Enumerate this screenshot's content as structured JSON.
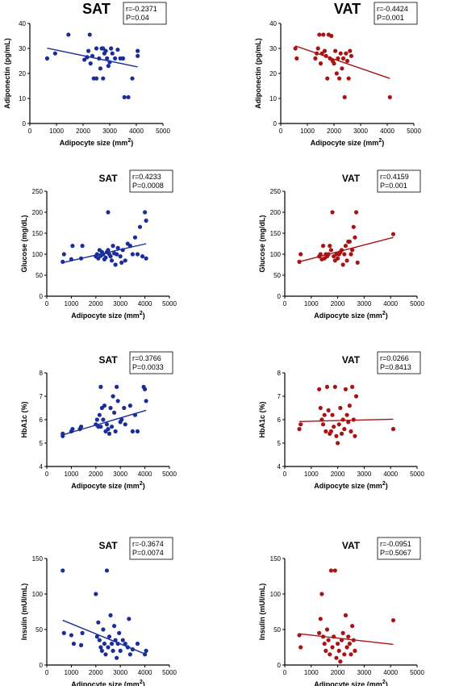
{
  "figure": {
    "colors": {
      "SAT": "#1a2e9a",
      "VAT": "#a81414",
      "axis": "#000000",
      "box_border": "#000000"
    },
    "marker": "filled-circle",
    "regression_line": "solid"
  },
  "chart_data": [
    {
      "type": "scatter",
      "title": "SAT",
      "group": "SAT",
      "xlabel": "Adipocyte size (mm",
      "xlabel_sup": "2",
      "xlabel_close": ")",
      "ylabel": "Adiponectin (pg/mL)",
      "xlim": [
        0,
        5000
      ],
      "ylim": [
        0,
        40
      ],
      "xticks": [
        0,
        1000,
        2000,
        3000,
        4000,
        5000
      ],
      "yticks": [
        0,
        10,
        20,
        30,
        40
      ],
      "stat_r": "r=-0.2371",
      "stat_p": "P=0.04",
      "fit": {
        "x": [
          650,
          4050
        ],
        "y": [
          30.1,
          22.6
        ]
      },
      "points": [
        [
          650,
          26
        ],
        [
          950,
          28
        ],
        [
          1450,
          35.5
        ],
        [
          2050,
          25.5
        ],
        [
          2150,
          26.5
        ],
        [
          2200,
          29
        ],
        [
          2250,
          35.5
        ],
        [
          2280,
          24
        ],
        [
          2350,
          27
        ],
        [
          2400,
          18
        ],
        [
          2500,
          30
        ],
        [
          2500,
          18
        ],
        [
          2600,
          26
        ],
        [
          2650,
          22
        ],
        [
          2700,
          30
        ],
        [
          2750,
          30
        ],
        [
          2750,
          18
        ],
        [
          2800,
          28
        ],
        [
          2850,
          29
        ],
        [
          2900,
          26
        ],
        [
          2950,
          23
        ],
        [
          3000,
          24.5
        ],
        [
          3050,
          30
        ],
        [
          3100,
          28
        ],
        [
          3200,
          26
        ],
        [
          3300,
          29.5
        ],
        [
          3400,
          26
        ],
        [
          3500,
          26
        ],
        [
          3550,
          10.5
        ],
        [
          3700,
          10.5
        ],
        [
          3850,
          18
        ],
        [
          4050,
          27
        ],
        [
          4050,
          29
        ]
      ]
    },
    {
      "type": "scatter",
      "title": "VAT",
      "group": "VAT",
      "xlabel": "Adipocyte size (mm",
      "xlabel_sup": "2",
      "xlabel_close": ")",
      "ylabel": "Adiponectin (pg/mL)",
      "xlim": [
        0,
        5000
      ],
      "ylim": [
        0,
        40
      ],
      "xticks": [
        0,
        1000,
        2000,
        3000,
        4000,
        5000
      ],
      "yticks": [
        0,
        10,
        20,
        30,
        40
      ],
      "stat_r": "r=-0.4424",
      "stat_p": "P=0.001",
      "fit": {
        "x": [
          550,
          4100
        ],
        "y": [
          31,
          18
        ]
      },
      "points": [
        [
          550,
          30
        ],
        [
          600,
          26
        ],
        [
          1300,
          26
        ],
        [
          1350,
          28
        ],
        [
          1400,
          30
        ],
        [
          1450,
          35.5
        ],
        [
          1500,
          24
        ],
        [
          1550,
          28
        ],
        [
          1600,
          35.5
        ],
        [
          1650,
          29
        ],
        [
          1700,
          27
        ],
        [
          1750,
          18
        ],
        [
          1800,
          35.5
        ],
        [
          1850,
          26
        ],
        [
          1900,
          35
        ],
        [
          1950,
          25
        ],
        [
          2000,
          24
        ],
        [
          2050,
          29
        ],
        [
          2100,
          20
        ],
        [
          2150,
          26
        ],
        [
          2200,
          18
        ],
        [
          2250,
          28
        ],
        [
          2300,
          22
        ],
        [
          2350,
          26
        ],
        [
          2400,
          10.5
        ],
        [
          2450,
          28
        ],
        [
          2500,
          25
        ],
        [
          2550,
          18
        ],
        [
          2600,
          29
        ],
        [
          2650,
          27
        ],
        [
          4100,
          10.5
        ]
      ]
    },
    {
      "type": "scatter",
      "title": "SAT",
      "group": "SAT",
      "xlabel": "Adipocyte size (mm",
      "xlabel_sup": "2",
      "xlabel_close": ")",
      "ylabel": "Glucose (mg/dL)",
      "xlim": [
        0,
        5000
      ],
      "ylim": [
        0,
        250
      ],
      "xticks": [
        0,
        1000,
        2000,
        3000,
        4000,
        5000
      ],
      "yticks": [
        0,
        50,
        100,
        150,
        200,
        250
      ],
      "stat_r": "r=0.4233",
      "stat_p": "P=0.0008",
      "fit": {
        "x": [
          650,
          4050
        ],
        "y": [
          80,
          125
        ]
      },
      "points": [
        [
          650,
          82
        ],
        [
          700,
          100
        ],
        [
          1000,
          88
        ],
        [
          1050,
          120
        ],
        [
          1400,
          90
        ],
        [
          1450,
          120
        ],
        [
          2000,
          95
        ],
        [
          2050,
          100
        ],
        [
          2100,
          90
        ],
        [
          2150,
          110
        ],
        [
          2200,
          96
        ],
        [
          2250,
          105
        ],
        [
          2300,
          100
        ],
        [
          2350,
          88
        ],
        [
          2400,
          92
        ],
        [
          2450,
          105
        ],
        [
          2500,
          110
        ],
        [
          2500,
          200
        ],
        [
          2550,
          100
        ],
        [
          2600,
          95
        ],
        [
          2650,
          85
        ],
        [
          2700,
          120
        ],
        [
          2750,
          102
        ],
        [
          2800,
          75
        ],
        [
          2850,
          100
        ],
        [
          2900,
          115
        ],
        [
          3000,
          95
        ],
        [
          3050,
          80
        ],
        [
          3100,
          110
        ],
        [
          3200,
          85
        ],
        [
          3300,
          125
        ],
        [
          3400,
          120
        ],
        [
          3500,
          100
        ],
        [
          3600,
          140
        ],
        [
          3700,
          100
        ],
        [
          3800,
          165
        ],
        [
          3900,
          95
        ],
        [
          4000,
          200
        ],
        [
          4050,
          180
        ],
        [
          4050,
          90
        ]
      ]
    },
    {
      "type": "scatter",
      "title": "VAT",
      "group": "VAT",
      "xlabel": "Adipocyte size (mm",
      "xlabel_sup": "2",
      "xlabel_close": ")",
      "ylabel": "Glucose (mg/dL)",
      "xlim": [
        0,
        5000
      ],
      "ylim": [
        0,
        250
      ],
      "xticks": [
        0,
        1000,
        2000,
        3000,
        4000,
        5000
      ],
      "yticks": [
        0,
        50,
        100,
        150,
        200,
        250
      ],
      "stat_r": "r=0.4159",
      "stat_p": "P=0.001",
      "fit": {
        "x": [
          550,
          4100
        ],
        "y": [
          82,
          140
        ]
      },
      "points": [
        [
          550,
          82
        ],
        [
          600,
          100
        ],
        [
          1300,
          95
        ],
        [
          1350,
          100
        ],
        [
          1400,
          88
        ],
        [
          1450,
          120
        ],
        [
          1500,
          90
        ],
        [
          1550,
          100
        ],
        [
          1600,
          95
        ],
        [
          1650,
          100
        ],
        [
          1700,
          120
        ],
        [
          1750,
          110
        ],
        [
          1800,
          200
        ],
        [
          1850,
          95
        ],
        [
          1900,
          85
        ],
        [
          1950,
          100
        ],
        [
          2000,
          90
        ],
        [
          2050,
          100
        ],
        [
          2100,
          105
        ],
        [
          2150,
          110
        ],
        [
          2200,
          75
        ],
        [
          2250,
          100
        ],
        [
          2300,
          120
        ],
        [
          2350,
          85
        ],
        [
          2400,
          130
        ],
        [
          2450,
          130
        ],
        [
          2500,
          100
        ],
        [
          2550,
          110
        ],
        [
          2600,
          165
        ],
        [
          2650,
          140
        ],
        [
          2700,
          200
        ],
        [
          2750,
          80
        ],
        [
          4100,
          148
        ]
      ]
    },
    {
      "type": "scatter",
      "title": "SAT",
      "group": "SAT",
      "xlabel": "Adipocyte size (mm",
      "xlabel_sup": "2",
      "xlabel_close": ")",
      "ylabel": "HbA1c (%)",
      "xlim": [
        0,
        5000
      ],
      "ylim": [
        4,
        8
      ],
      "xticks": [
        0,
        1000,
        2000,
        3000,
        4000,
        5000
      ],
      "yticks": [
        4,
        5,
        6,
        7,
        8
      ],
      "stat_r": "r=0.3766",
      "stat_p": "P=0.0033",
      "fit": {
        "x": [
          650,
          4050
        ],
        "y": [
          5.35,
          6.4
        ]
      },
      "points": [
        [
          650,
          5.3
        ],
        [
          650,
          5.4
        ],
        [
          1000,
          5.5
        ],
        [
          1050,
          5.6
        ],
        [
          1350,
          5.6
        ],
        [
          1400,
          5.7
        ],
        [
          2000,
          5.8
        ],
        [
          2050,
          6.0
        ],
        [
          2100,
          5.7
        ],
        [
          2150,
          6.2
        ],
        [
          2200,
          7.4
        ],
        [
          2200,
          5.7
        ],
        [
          2250,
          6.5
        ],
        [
          2300,
          6.0
        ],
        [
          2350,
          6.6
        ],
        [
          2400,
          5.5
        ],
        [
          2450,
          5.8
        ],
        [
          2500,
          5.6
        ],
        [
          2550,
          5.4
        ],
        [
          2600,
          6.5
        ],
        [
          2650,
          5.7
        ],
        [
          2700,
          7.0
        ],
        [
          2750,
          6.3
        ],
        [
          2800,
          5.5
        ],
        [
          2850,
          7.4
        ],
        [
          2900,
          6.8
        ],
        [
          3000,
          5.9
        ],
        [
          3050,
          6.0
        ],
        [
          3150,
          6.5
        ],
        [
          3200,
          5.8
        ],
        [
          3400,
          6.6
        ],
        [
          3500,
          5.5
        ],
        [
          3600,
          6.2
        ],
        [
          3700,
          5.5
        ],
        [
          3950,
          7.4
        ],
        [
          4000,
          7.3
        ],
        [
          4050,
          6.8
        ]
      ]
    },
    {
      "type": "scatter",
      "title": "VAT",
      "group": "VAT",
      "xlabel": "Adipocyte size (mm",
      "xlabel_sup": "2",
      "xlabel_close": ")",
      "ylabel": "HbA1c (%)",
      "xlim": [
        0,
        5000
      ],
      "ylim": [
        4,
        8
      ],
      "xticks": [
        0,
        1000,
        2000,
        3000,
        4000,
        5000
      ],
      "yticks": [
        4,
        5,
        6,
        7,
        8
      ],
      "stat_r": "r=0.0266",
      "stat_p": "P=0.8413",
      "fit": {
        "x": [
          550,
          4100
        ],
        "y": [
          5.92,
          6.02
        ]
      },
      "points": [
        [
          550,
          5.6
        ],
        [
          600,
          5.8
        ],
        [
          1300,
          7.3
        ],
        [
          1350,
          6.5
        ],
        [
          1400,
          6.0
        ],
        [
          1450,
          5.8
        ],
        [
          1500,
          6.2
        ],
        [
          1550,
          5.5
        ],
        [
          1600,
          7.4
        ],
        [
          1650,
          6.4
        ],
        [
          1700,
          5.4
        ],
        [
          1750,
          5.5
        ],
        [
          1800,
          6.2
        ],
        [
          1850,
          5.7
        ],
        [
          1900,
          7.4
        ],
        [
          1950,
          5.3
        ],
        [
          2000,
          5.0
        ],
        [
          2050,
          5.8
        ],
        [
          2100,
          6.5
        ],
        [
          2150,
          5.4
        ],
        [
          2200,
          6.0
        ],
        [
          2250,
          5.6
        ],
        [
          2300,
          7.3
        ],
        [
          2350,
          6.2
        ],
        [
          2400,
          5.9
        ],
        [
          2450,
          6.6
        ],
        [
          2500,
          5.5
        ],
        [
          2550,
          7.4
        ],
        [
          2600,
          6.0
        ],
        [
          2650,
          5.3
        ],
        [
          2700,
          7.0
        ],
        [
          4100,
          5.6
        ]
      ]
    },
    {
      "type": "scatter",
      "title": "SAT",
      "group": "SAT",
      "xlabel": "Adipocyte size (mm",
      "xlabel_sup": "2",
      "xlabel_close": ")",
      "ylabel": "Insulin (mUI/mL)",
      "xlim": [
        0,
        5000
      ],
      "ylim": [
        0,
        150
      ],
      "xticks": [
        0,
        1000,
        2000,
        3000,
        4000,
        5000
      ],
      "yticks": [
        0,
        50,
        100,
        150
      ],
      "stat_r": "r=-0.3674",
      "stat_p": "P=0.0074",
      "fit": {
        "x": [
          650,
          4050
        ],
        "y": [
          63,
          15
        ]
      },
      "points": [
        [
          650,
          133
        ],
        [
          700,
          45
        ],
        [
          1000,
          42
        ],
        [
          1100,
          30
        ],
        [
          1400,
          28
        ],
        [
          1450,
          45
        ],
        [
          2000,
          100
        ],
        [
          2050,
          40
        ],
        [
          2100,
          60
        ],
        [
          2150,
          35
        ],
        [
          2200,
          25
        ],
        [
          2250,
          20
        ],
        [
          2300,
          50
        ],
        [
          2350,
          30
        ],
        [
          2400,
          15
        ],
        [
          2450,
          133
        ],
        [
          2500,
          25
        ],
        [
          2550,
          40
        ],
        [
          2600,
          70
        ],
        [
          2650,
          30
        ],
        [
          2700,
          20
        ],
        [
          2750,
          55
        ],
        [
          2800,
          35
        ],
        [
          2850,
          10
        ],
        [
          2900,
          30
        ],
        [
          2950,
          45
        ],
        [
          3000,
          20
        ],
        [
          3100,
          35
        ],
        [
          3200,
          30
        ],
        [
          3300,
          25
        ],
        [
          3350,
          65
        ],
        [
          3400,
          15
        ],
        [
          3500,
          22
        ],
        [
          3700,
          30
        ],
        [
          4000,
          15
        ],
        [
          4050,
          20
        ]
      ]
    },
    {
      "type": "scatter",
      "title": "VAT",
      "group": "VAT",
      "xlabel": "Adipocyte size (mm",
      "xlabel_sup": "2",
      "xlabel_close": ")",
      "ylabel": "Insulin (mUI/mL)",
      "xlim": [
        0,
        5000
      ],
      "ylim": [
        0,
        150
      ],
      "xticks": [
        0,
        1000,
        2000,
        3000,
        4000,
        5000
      ],
      "yticks": [
        0,
        50,
        100,
        150
      ],
      "stat_r": "r=-0.0951",
      "stat_p": "P=0.5067",
      "fit": {
        "x": [
          550,
          4100
        ],
        "y": [
          44,
          29
        ]
      },
      "points": [
        [
          550,
          42
        ],
        [
          600,
          25
        ],
        [
          1300,
          45
        ],
        [
          1350,
          65
        ],
        [
          1400,
          100
        ],
        [
          1450,
          40
        ],
        [
          1500,
          30
        ],
        [
          1550,
          20
        ],
        [
          1600,
          50
        ],
        [
          1650,
          35
        ],
        [
          1700,
          15
        ],
        [
          1750,
          133
        ],
        [
          1800,
          25
        ],
        [
          1850,
          40
        ],
        [
          1900,
          133
        ],
        [
          1950,
          10
        ],
        [
          2000,
          30
        ],
        [
          2050,
          20
        ],
        [
          2100,
          5
        ],
        [
          2150,
          35
        ],
        [
          2200,
          45
        ],
        [
          2250,
          15
        ],
        [
          2300,
          70
        ],
        [
          2350,
          25
        ],
        [
          2400,
          40
        ],
        [
          2450,
          30
        ],
        [
          2500,
          15
        ],
        [
          2550,
          55
        ],
        [
          2600,
          35
        ],
        [
          2650,
          20
        ],
        [
          4100,
          63
        ]
      ]
    }
  ]
}
